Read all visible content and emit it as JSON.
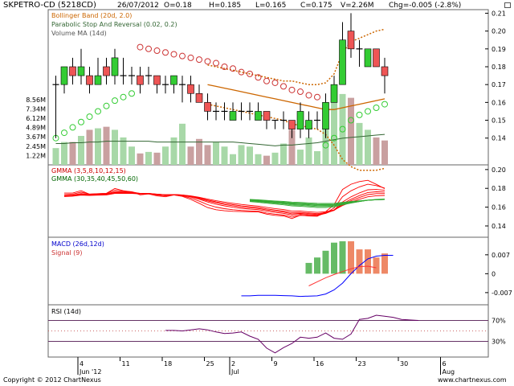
{
  "header": {
    "symbol": "SKPETRO-CD (5218CD)",
    "date": "26/07/2012",
    "open": "O=0.18",
    "high": "H=0.185",
    "low": "L=0.165",
    "close": "C=0.175",
    "volume": "V=2.26M",
    "change": "Chg=-0.005 (-2.8%)"
  },
  "footer": {
    "copyright": "Copyright © 2012 ChartNexus",
    "url": "www.chartnexus.com"
  },
  "colors": {
    "up": "#33cc33",
    "down": "#ee5555",
    "sar": "#cc3333",
    "bollinger": "#cc6600",
    "volume_ma": "#336633",
    "gmma_short": "#ff0000",
    "gmma_long": "#33aa33",
    "macd_line": "#0000ff",
    "signal_line": "#ff3333",
    "rsi_line": "#660066"
  },
  "chart_data": [
    {
      "type": "candlestick",
      "panel": "price",
      "legend": [
        "Bollinger Band (20d, 2.0)",
        "Parabolic Stop And Reversal (0.02, 0.2)",
        "Volume MA (14d)"
      ],
      "y_ticks": [
        "0.21",
        "0.20",
        "0.19",
        "0.18",
        "0.17",
        "0.16",
        "0.15",
        "0.14"
      ],
      "ylim": [
        0.125,
        0.212
      ],
      "volume_ticks": [
        "8.56M",
        "7.34M",
        "6.12M",
        "4.89M",
        "3.67M",
        "2.45M",
        "1.22M"
      ],
      "volume_max": 9.5,
      "x_ticks": [
        {
          "i": 3,
          "label": "4"
        },
        {
          "i": 8,
          "label": "11"
        },
        {
          "i": 13,
          "label": "18"
        },
        {
          "i": 18,
          "label": "25"
        },
        {
          "i": 21,
          "label": "2"
        },
        {
          "i": 26,
          "label": "9"
        },
        {
          "i": 31,
          "label": "16"
        },
        {
          "i": 36,
          "label": "23"
        },
        {
          "i": 41,
          "label": "30"
        },
        {
          "i": 46,
          "label": "6"
        }
      ],
      "month_labels": [
        {
          "i": 3,
          "label": "Jun '12"
        },
        {
          "i": 21,
          "label": "Jul"
        },
        {
          "i": 46,
          "label": "Aug"
        }
      ],
      "candles": [
        {
          "o": 0.17,
          "h": 0.175,
          "l": 0.14,
          "c": 0.17
        },
        {
          "o": 0.17,
          "h": 0.18,
          "l": 0.165,
          "c": 0.18
        },
        {
          "o": 0.18,
          "h": 0.185,
          "l": 0.17,
          "c": 0.175
        },
        {
          "o": 0.175,
          "h": 0.19,
          "l": 0.17,
          "c": 0.18
        },
        {
          "o": 0.175,
          "h": 0.18,
          "l": 0.165,
          "c": 0.17
        },
        {
          "o": 0.17,
          "h": 0.185,
          "l": 0.17,
          "c": 0.175
        },
        {
          "o": 0.18,
          "h": 0.185,
          "l": 0.17,
          "c": 0.175
        },
        {
          "o": 0.175,
          "h": 0.19,
          "l": 0.17,
          "c": 0.185
        },
        {
          "o": 0.175,
          "h": 0.185,
          "l": 0.17,
          "c": 0.175
        },
        {
          "o": 0.175,
          "h": 0.18,
          "l": 0.17,
          "c": 0.175
        },
        {
          "o": 0.175,
          "h": 0.18,
          "l": 0.165,
          "c": 0.17
        },
        {
          "o": 0.175,
          "h": 0.18,
          "l": 0.17,
          "c": 0.175
        },
        {
          "o": 0.175,
          "h": 0.175,
          "l": 0.165,
          "c": 0.17
        },
        {
          "o": 0.17,
          "h": 0.175,
          "l": 0.165,
          "c": 0.17
        },
        {
          "o": 0.17,
          "h": 0.175,
          "l": 0.165,
          "c": 0.175
        },
        {
          "o": 0.17,
          "h": 0.175,
          "l": 0.16,
          "c": 0.17
        },
        {
          "o": 0.17,
          "h": 0.175,
          "l": 0.16,
          "c": 0.165
        },
        {
          "o": 0.165,
          "h": 0.17,
          "l": 0.16,
          "c": 0.16
        },
        {
          "o": 0.16,
          "h": 0.165,
          "l": 0.15,
          "c": 0.155
        },
        {
          "o": 0.155,
          "h": 0.16,
          "l": 0.15,
          "c": 0.155
        },
        {
          "o": 0.155,
          "h": 0.16,
          "l": 0.15,
          "c": 0.155
        },
        {
          "o": 0.15,
          "h": 0.16,
          "l": 0.15,
          "c": 0.155
        },
        {
          "o": 0.155,
          "h": 0.16,
          "l": 0.15,
          "c": 0.155
        },
        {
          "o": 0.155,
          "h": 0.16,
          "l": 0.15,
          "c": 0.155
        },
        {
          "o": 0.15,
          "h": 0.16,
          "l": 0.15,
          "c": 0.155
        },
        {
          "o": 0.155,
          "h": 0.155,
          "l": 0.145,
          "c": 0.15
        },
        {
          "o": 0.15,
          "h": 0.15,
          "l": 0.145,
          "c": 0.15
        },
        {
          "o": 0.15,
          "h": 0.155,
          "l": 0.145,
          "c": 0.15
        },
        {
          "o": 0.15,
          "h": 0.15,
          "l": 0.14,
          "c": 0.145
        },
        {
          "o": 0.145,
          "h": 0.16,
          "l": 0.14,
          "c": 0.155
        },
        {
          "o": 0.145,
          "h": 0.155,
          "l": 0.14,
          "c": 0.15
        },
        {
          "o": 0.15,
          "h": 0.155,
          "l": 0.145,
          "c": 0.15
        },
        {
          "o": 0.145,
          "h": 0.165,
          "l": 0.14,
          "c": 0.16
        },
        {
          "o": 0.16,
          "h": 0.175,
          "l": 0.16,
          "c": 0.17
        },
        {
          "o": 0.17,
          "h": 0.205,
          "l": 0.17,
          "c": 0.195
        },
        {
          "o": 0.2,
          "h": 0.21,
          "l": 0.185,
          "c": 0.19
        },
        {
          "o": 0.19,
          "h": 0.195,
          "l": 0.18,
          "c": 0.19
        },
        {
          "o": 0.18,
          "h": 0.19,
          "l": 0.18,
          "c": 0.19
        },
        {
          "o": 0.19,
          "h": 0.19,
          "l": 0.18,
          "c": 0.18
        },
        {
          "o": 0.18,
          "h": 0.185,
          "l": 0.165,
          "c": 0.175
        }
      ],
      "sar": [
        0.14,
        0.143,
        0.146,
        0.149,
        0.152,
        0.155,
        0.158,
        0.161,
        0.163,
        0.165,
        0.191,
        0.19,
        0.189,
        0.188,
        0.187,
        0.186,
        0.185,
        0.184,
        0.183,
        0.182,
        0.18,
        0.179,
        0.177,
        0.176,
        0.174,
        0.172,
        0.171,
        0.169,
        0.167,
        0.166,
        0.164,
        0.163,
        0.136,
        0.14,
        0.145,
        0.15,
        0.153,
        0.155,
        0.157,
        0.159
      ],
      "bb_mid_start": 18,
      "bb_mid": [
        0.17,
        0.169,
        0.168,
        0.167,
        0.166,
        0.165,
        0.164,
        0.163,
        0.162,
        0.161,
        0.16,
        0.159,
        0.158,
        0.157,
        0.156,
        0.156,
        0.157,
        0.158,
        0.159,
        0.16,
        0.161,
        0.162
      ],
      "bb_upper": [
        0.181,
        0.18,
        0.179,
        0.178,
        0.177,
        0.176,
        0.175,
        0.174,
        0.173,
        0.172,
        0.172,
        0.171,
        0.17,
        0.17,
        0.171,
        0.176,
        0.188,
        0.194,
        0.196,
        0.198,
        0.2,
        0.201
      ],
      "bb_lower": [
        0.159,
        0.158,
        0.157,
        0.156,
        0.155,
        0.154,
        0.153,
        0.152,
        0.151,
        0.15,
        0.148,
        0.147,
        0.146,
        0.145,
        0.142,
        0.136,
        0.128,
        0.124,
        0.122,
        0.122,
        0.122,
        0.123
      ],
      "volume": [
        2.2,
        3.0,
        3.0,
        3.8,
        4.6,
        4.8,
        5.0,
        4.6,
        3.6,
        2.4,
        1.5,
        1.7,
        1.6,
        2.4,
        3.6,
        5.4,
        2.4,
        3.4,
        2.6,
        3.0,
        2.4,
        1.4,
        2.6,
        2.4,
        1.4,
        1.2,
        1.6,
        2.8,
        4.6,
        2.0,
        3.6,
        1.8,
        4.8,
        8.8,
        9.3,
        8.8,
        5.5,
        4.6,
        3.6,
        3.2
      ],
      "volume_ma": [
        2.8,
        2.8,
        2.9,
        2.9,
        3.0,
        3.0,
        3.1,
        3.1,
        3.1,
        3.1,
        3.1,
        3.1,
        3.0,
        3.0,
        3.0,
        3.0,
        3.0,
        3.0,
        3.0,
        3.0,
        3.0,
        3.0,
        2.9,
        2.8,
        2.7,
        2.6,
        2.5,
        2.6,
        2.6,
        2.7,
        2.8,
        2.9,
        3.1,
        3.3,
        3.5,
        3.6,
        3.7,
        3.8,
        3.9,
        4.0
      ]
    },
    {
      "type": "line",
      "panel": "gmma",
      "legend": [
        "GMMA (3,5,8,10,12,15)",
        "GMMA (30,35,40,45,50,60)"
      ],
      "y_ticks": [
        "0.20",
        "0.18",
        "0.16",
        "0.14"
      ],
      "ylim": [
        0.128,
        0.205
      ],
      "long_start": 23
    },
    {
      "type": "bar",
      "panel": "macd",
      "legend": [
        "MACD (26d,12d)",
        "Signal (9)"
      ],
      "y_ticks": [
        "0.007",
        "0",
        "-0.007"
      ],
      "ylim": [
        -0.0115,
        0.0135
      ],
      "macd_start": 22,
      "histogram_start": 30,
      "histogram": [
        0.004,
        0.006,
        0.0085,
        0.0115,
        0.012,
        0.012,
        0.009,
        0.009,
        0.006,
        0.0075
      ],
      "macd": [
        -0.0082,
        -0.0082,
        -0.008,
        -0.008,
        -0.008,
        -0.0081,
        -0.0082,
        -0.0084,
        -0.0083,
        -0.0082,
        -0.0075,
        -0.006,
        -0.0035,
        0.0,
        0.003,
        0.0055,
        0.0065,
        0.0068,
        0.0068
      ],
      "signal": [
        -0.0045,
        -0.003,
        -0.0015,
        -0.0003,
        0.0008,
        0.0018,
        0.0026,
        0.0028,
        0.0022
      ]
    },
    {
      "type": "line",
      "panel": "rsi",
      "legend": [
        "RSI (14d)"
      ],
      "y_ticks": [
        "70%",
        "30%"
      ],
      "ylim": [
        0,
        100
      ],
      "rsi_start": 13,
      "rsi": [
        51,
        51,
        50,
        52,
        54,
        52,
        48,
        45,
        46,
        48,
        40,
        34,
        17,
        8,
        18,
        26,
        38,
        36,
        38,
        46,
        36,
        34,
        44,
        72,
        74,
        80,
        78,
        76,
        72,
        71,
        70
      ]
    }
  ]
}
